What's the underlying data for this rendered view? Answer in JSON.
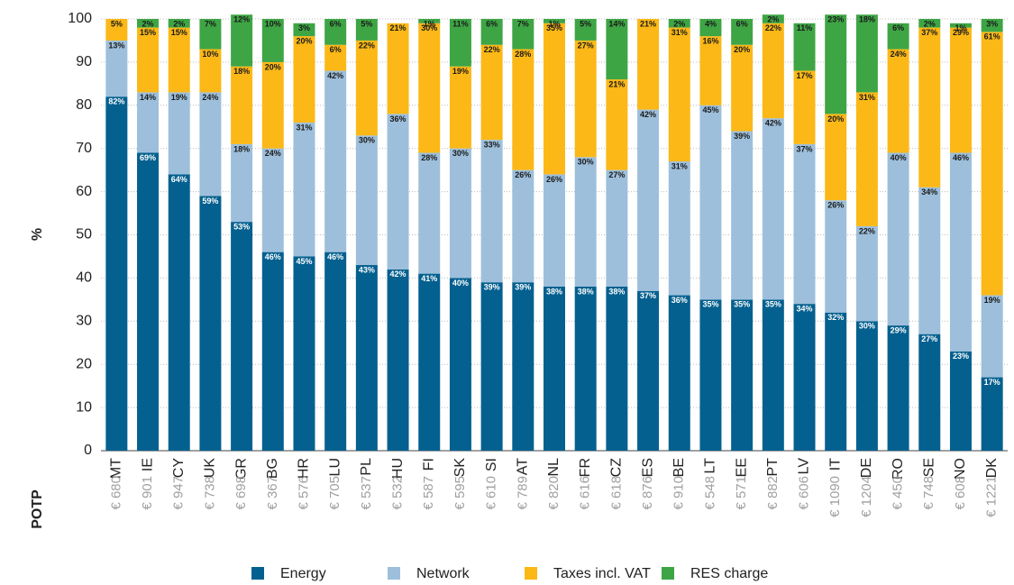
{
  "chart_data": {
    "type": "stacked_bar",
    "y_label": "%",
    "row_label": "POTP",
    "categories": [
      "MT",
      "IE",
      "CY",
      "UK",
      "GR",
      "BG",
      "HR",
      "LU",
      "PL",
      "HU",
      "FI",
      "SK",
      "SI",
      "AT",
      "NL",
      "FR",
      "CZ",
      "ES",
      "BE",
      "LT",
      "EE",
      "PT",
      "LV",
      "IT",
      "DE",
      "RO",
      "SE",
      "NO",
      "DK"
    ],
    "row_values": [
      "€ 680",
      "€ 901",
      "€ 947",
      "€ 738",
      "€ 698",
      "€ 367",
      "€ 576",
      "€ 705",
      "€ 537",
      "€ 532",
      "€ 587",
      "€ 595",
      "€ 610",
      "€ 789",
      "€ 820",
      "€ 616",
      "€ 618",
      "€ 876",
      "€ 910",
      "€ 548",
      "€ 571",
      "€ 882",
      "€ 606",
      "€ 1090",
      "€ 1204",
      "€ 450",
      "€ 748",
      "€ 608",
      "€ 1221"
    ],
    "series": [
      {
        "name": "Energy",
        "color": "#04608f",
        "label_color": "#ffffff",
        "values": [
          82,
          69,
          64,
          59,
          53,
          46,
          45,
          46,
          43,
          42,
          41,
          40,
          39,
          39,
          38,
          38,
          38,
          37,
          36,
          35,
          35,
          35,
          34,
          32,
          30,
          29,
          27,
          23,
          17
        ],
        "value_labels": [
          "82%",
          "69%",
          "64%",
          "59%",
          "53%",
          "46%",
          "45%",
          "46%",
          "43%",
          "42%",
          "41%",
          "40%",
          "39%",
          "39%",
          "38%",
          "38%",
          "38%",
          "37%",
          "36%",
          "35%",
          "35%",
          "35%",
          "34%",
          "32%",
          "30%",
          "29%",
          "27%",
          "23%",
          "17%"
        ]
      },
      {
        "name": "Network",
        "color": "#9dbfdb",
        "label_color": "#1a1a1a",
        "values": [
          13,
          14,
          19,
          24,
          18,
          24,
          31,
          42,
          30,
          36,
          28,
          30,
          33,
          26,
          26,
          30,
          27,
          42,
          31,
          45,
          39,
          42,
          37,
          26,
          22,
          40,
          34,
          46,
          19
        ],
        "value_labels": [
          "13%",
          "14%",
          "19%",
          "24%",
          "18%",
          "24%",
          "31%",
          "42%",
          "30%",
          "36%",
          "28%",
          "30%",
          "33%",
          "26%",
          "26%",
          "30%",
          "27%",
          "42%",
          "31%",
          "45%",
          "39%",
          "42%",
          "37%",
          "26%",
          "22%",
          "40%",
          "34%",
          "46%",
          "19%"
        ]
      },
      {
        "name": "Taxes incl. VAT",
        "color": "#fbb817",
        "label_color": "#1a1a1a",
        "values": [
          5,
          15,
          15,
          10,
          18,
          20,
          20,
          6,
          22,
          21,
          30,
          19,
          22,
          28,
          35,
          27,
          21,
          21,
          31,
          16,
          20,
          22,
          17,
          20,
          31,
          24,
          37,
          29,
          61
        ],
        "value_labels": [
          "5%",
          "15%",
          "15%",
          "10%",
          "18%",
          "20%",
          "20%",
          "6%",
          "22%",
          "21%",
          "30%",
          "19%",
          "22%",
          "28%",
          "35%",
          "27%",
          "21%",
          "21%",
          "31%",
          "16%",
          "20%",
          "22%",
          "17%",
          "20%",
          "31%",
          "24%",
          "37%",
          "29%",
          "61%"
        ]
      },
      {
        "name": "RES charge",
        "color": "#3ea545",
        "label_color": "#1a1a1a",
        "values": [
          null,
          2,
          2,
          7,
          12,
          10,
          3,
          6,
          5,
          null,
          1,
          11,
          6,
          7,
          1,
          5,
          14,
          null,
          2,
          4,
          6,
          2,
          11,
          23,
          18,
          6,
          2,
          1,
          3
        ],
        "value_labels": [
          null,
          "2%",
          "2%",
          "7%",
          "12%",
          "10%",
          "3%",
          "6%",
          "5%",
          null,
          "1%",
          "11%",
          "6%",
          "7%",
          "1%",
          "5%",
          "14%",
          null,
          "2%",
          "4%",
          "6%",
          "2%",
          "11%",
          "23%",
          "18%",
          "6%",
          "2%",
          "1%",
          "3%"
        ]
      }
    ],
    "ylim": [
      0,
      100
    ],
    "yticks": [
      0,
      10,
      20,
      30,
      40,
      50,
      60,
      70,
      80,
      90,
      100
    ],
    "grid": true,
    "legend": "bottom"
  }
}
